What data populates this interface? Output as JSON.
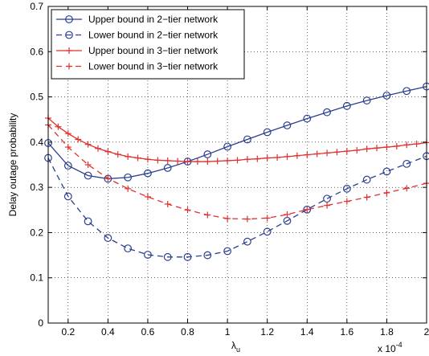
{
  "chart_data": {
    "type": "line",
    "xlabel_main": "λ",
    "xlabel_sub": "u",
    "ylabel": "Delay outage probability",
    "x_multiplier_text": "x 10",
    "x_multiplier_exp": "-4",
    "xlim": [
      0.1,
      2.0
    ],
    "ylim": [
      0,
      0.7
    ],
    "xticks": [
      0.2,
      0.4,
      0.6,
      0.8,
      1.0,
      1.2,
      1.4,
      1.6,
      1.8,
      2.0
    ],
    "xtick_labels": [
      "0.2",
      "0.4",
      "0.6",
      "0.8",
      "1",
      "1.2",
      "1.4",
      "1.6",
      "1.8",
      "2"
    ],
    "yticks": [
      0,
      0.1,
      0.2,
      0.3,
      0.4,
      0.5,
      0.6,
      0.7
    ],
    "ytick_labels": [
      "0",
      "0.1",
      "0.2",
      "0.3",
      "0.4",
      "0.5",
      "0.6",
      "0.7"
    ],
    "grid": true,
    "legend_position": "top-left",
    "series": [
      {
        "name": "Upper bound in 2−tier network",
        "color": "#2a3f8f",
        "line_style": "solid",
        "marker": "circle",
        "x": [
          0.1,
          0.2,
          0.3,
          0.4,
          0.5,
          0.6,
          0.7,
          0.8,
          0.9,
          1.0,
          1.1,
          1.2,
          1.3,
          1.4,
          1.5,
          1.6,
          1.7,
          1.8,
          1.9,
          2.0
        ],
        "y": [
          0.398,
          0.348,
          0.326,
          0.319,
          0.322,
          0.331,
          0.343,
          0.357,
          0.373,
          0.39,
          0.406,
          0.422,
          0.437,
          0.452,
          0.466,
          0.48,
          0.492,
          0.503,
          0.513,
          0.523
        ]
      },
      {
        "name": "Lower bound in 2−tier network",
        "color": "#2a3f8f",
        "line_style": "dashed",
        "marker": "circle",
        "x": [
          0.1,
          0.2,
          0.3,
          0.4,
          0.5,
          0.6,
          0.7,
          0.8,
          0.9,
          1.0,
          1.1,
          1.2,
          1.3,
          1.4,
          1.5,
          1.6,
          1.7,
          1.8,
          1.9,
          2.0
        ],
        "y": [
          0.365,
          0.28,
          0.225,
          0.188,
          0.165,
          0.151,
          0.146,
          0.146,
          0.15,
          0.159,
          0.18,
          0.202,
          0.226,
          0.251,
          0.275,
          0.297,
          0.317,
          0.335,
          0.352,
          0.369
        ]
      },
      {
        "name": "Upper bound in 3−tier network",
        "color": "#e03030",
        "line_style": "solid",
        "marker": "plus",
        "x": [
          0.1,
          0.15,
          0.2,
          0.25,
          0.3,
          0.35,
          0.4,
          0.45,
          0.5,
          0.55,
          0.6,
          0.65,
          0.7,
          0.75,
          0.8,
          0.85,
          0.9,
          0.95,
          1.0,
          1.05,
          1.1,
          1.15,
          1.2,
          1.25,
          1.3,
          1.35,
          1.4,
          1.45,
          1.5,
          1.55,
          1.6,
          1.65,
          1.7,
          1.75,
          1.8,
          1.85,
          1.9,
          1.95,
          2.0
        ],
        "y": [
          0.453,
          0.434,
          0.419,
          0.406,
          0.395,
          0.386,
          0.379,
          0.373,
          0.368,
          0.365,
          0.362,
          0.36,
          0.359,
          0.358,
          0.357,
          0.357,
          0.357,
          0.358,
          0.359,
          0.36,
          0.362,
          0.363,
          0.365,
          0.366,
          0.368,
          0.37,
          0.372,
          0.374,
          0.376,
          0.378,
          0.38,
          0.382,
          0.385,
          0.387,
          0.389,
          0.391,
          0.394,
          0.396,
          0.399
        ]
      },
      {
        "name": "Lower bound in 3−tier network",
        "color": "#e03030",
        "line_style": "dashed",
        "marker": "plus",
        "x": [
          0.1,
          0.2,
          0.3,
          0.4,
          0.5,
          0.6,
          0.7,
          0.8,
          0.9,
          1.0,
          1.1,
          1.2,
          1.3,
          1.4,
          1.5,
          1.6,
          1.7,
          1.8,
          1.9,
          2.0
        ],
        "y": [
          0.438,
          0.389,
          0.35,
          0.32,
          0.297,
          0.279,
          0.263,
          0.25,
          0.239,
          0.231,
          0.23,
          0.232,
          0.24,
          0.251,
          0.26,
          0.269,
          0.278,
          0.288,
          0.298,
          0.309
        ]
      }
    ]
  }
}
